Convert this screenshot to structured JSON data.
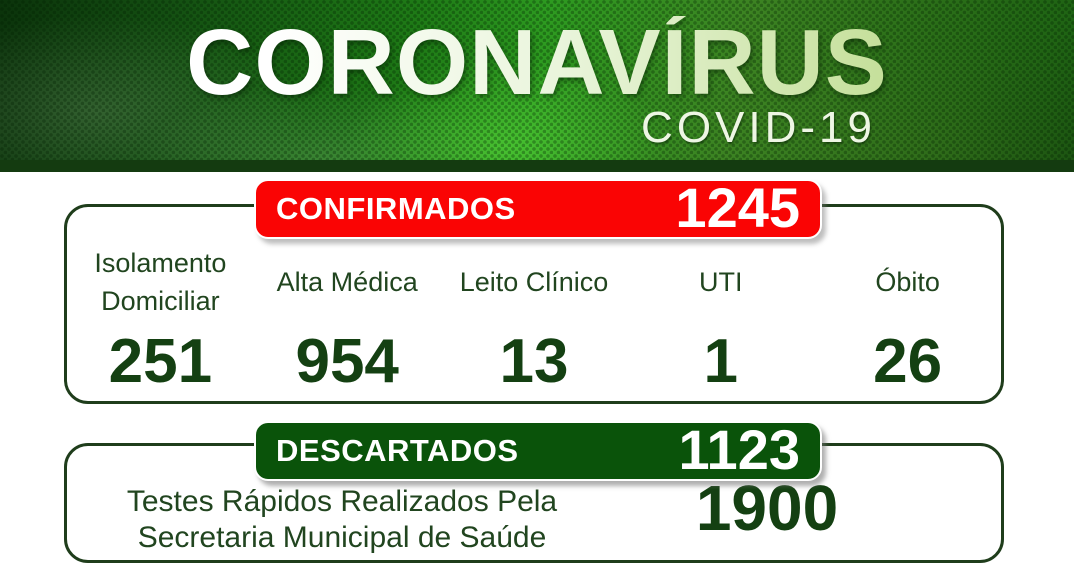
{
  "banner": {
    "title": "CORONAVÍRUS",
    "subtitle": "COVID-19"
  },
  "confirmed": {
    "badge_label": "CONFIRMADOS",
    "badge_value": "1245",
    "columns": [
      {
        "label": "Isolamento Domiciliar",
        "value": "251"
      },
      {
        "label": "Alta Médica",
        "value": "954"
      },
      {
        "label": "Leito Clínico",
        "value": "13"
      },
      {
        "label": "UTI",
        "value": "1"
      },
      {
        "label": "Óbito",
        "value": "26"
      }
    ]
  },
  "discarded": {
    "badge_label": "DESCARTADOS",
    "badge_value": "1123"
  },
  "tests": {
    "line1": "Testes Rápidos Realizados Pela",
    "line2": "Secretaria Municipal de Saúde",
    "value": "1900"
  },
  "colors": {
    "confirmed_badge": "#fa0404",
    "discarded_badge": "#0a530a",
    "panel_border": "#1f3d1b",
    "value_text": "#144012",
    "label_text": "#21451f",
    "banner_strip": "#143b10"
  },
  "chart_data": {
    "type": "table",
    "title": "CORONAVÍRUS COVID-19",
    "categories": [
      "Confirmados",
      "Isolamento Domiciliar",
      "Alta Médica",
      "Leito Clínico",
      "UTI",
      "Óbito",
      "Descartados",
      "Testes Rápidos Realizados Pela Secretaria Municipal de Saúde"
    ],
    "values": [
      1245,
      251,
      954,
      13,
      1,
      26,
      1123,
      1900
    ]
  }
}
